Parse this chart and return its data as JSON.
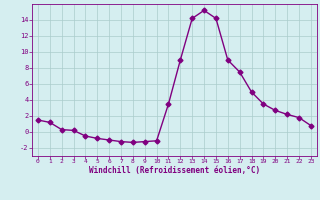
{
  "x": [
    0,
    1,
    2,
    3,
    4,
    5,
    6,
    7,
    8,
    9,
    10,
    11,
    12,
    13,
    14,
    15,
    16,
    17,
    18,
    19,
    20,
    21,
    22,
    23
  ],
  "y": [
    1.5,
    1.2,
    0.3,
    0.2,
    -0.5,
    -0.8,
    -1.0,
    -1.2,
    -1.3,
    -1.2,
    -1.1,
    3.5,
    9.0,
    14.2,
    15.2,
    14.2,
    9.0,
    7.5,
    5.0,
    3.5,
    2.7,
    2.2,
    1.8,
    0.8
  ],
  "line_color": "#800080",
  "marker": "D",
  "markersize": 2.5,
  "linewidth": 1.0,
  "xlabel": "Windchill (Refroidissement éolien,°C)",
  "xlim": [
    -0.5,
    23.5
  ],
  "ylim": [
    -3,
    16
  ],
  "yticks": [
    -2,
    0,
    2,
    4,
    6,
    8,
    10,
    12,
    14
  ],
  "xticks": [
    0,
    1,
    2,
    3,
    4,
    5,
    6,
    7,
    8,
    9,
    10,
    11,
    12,
    13,
    14,
    15,
    16,
    17,
    18,
    19,
    20,
    21,
    22,
    23
  ],
  "background_color": "#d5eef0",
  "grid_color": "#aacccc",
  "tick_color": "#800080",
  "label_color": "#800080"
}
